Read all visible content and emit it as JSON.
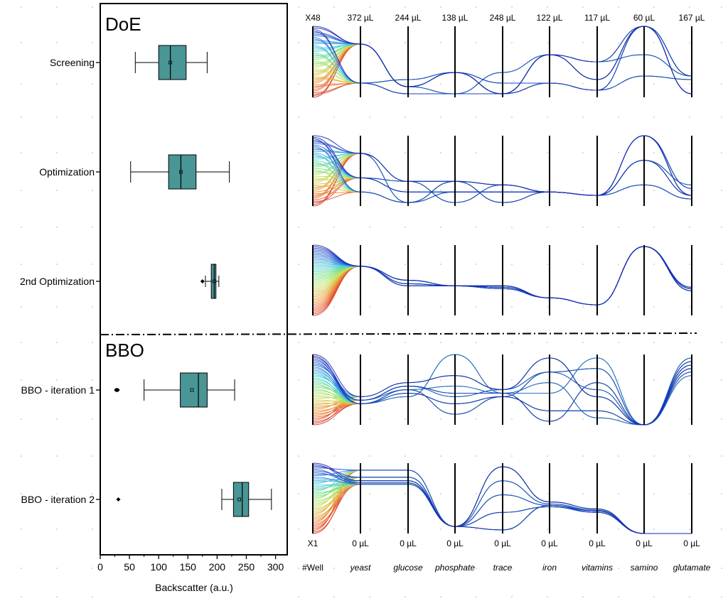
{
  "chart_data": [
    {
      "type": "boxplot",
      "orientation": "horizontal",
      "xlabel": "Backscatter (a.u.)",
      "xlim": [
        0,
        320
      ],
      "xticks": [
        0,
        50,
        100,
        150,
        200,
        250,
        300
      ],
      "section_labels": [
        "DoE",
        "BBO"
      ],
      "groups": [
        {
          "label": "Screening",
          "whisker_low": 60,
          "q1": 100,
          "median": 120,
          "mean": 120,
          "q3": 147,
          "whisker_high": 183,
          "outliers": []
        },
        {
          "label": "Optimization",
          "whisker_low": 52,
          "q1": 117,
          "median": 138,
          "mean": 138,
          "q3": 164,
          "whisker_high": 221,
          "outliers": []
        },
        {
          "label": "2nd Optimization",
          "whisker_low": 180,
          "q1": 190,
          "median": 195,
          "mean": 195,
          "q3": 198,
          "whisker_high": 203,
          "outliers": [
            175
          ]
        },
        {
          "label": "BBO - iteration 1",
          "whisker_low": 75,
          "q1": 137,
          "median": 168,
          "mean": 157,
          "q3": 183,
          "whisker_high": 230,
          "outliers": [
            27,
            28,
            30
          ]
        },
        {
          "label": "BBO - iteration 2",
          "whisker_low": 208,
          "q1": 228,
          "median": 243,
          "mean": 238,
          "q3": 254,
          "whisker_high": 293,
          "outliers": [
            31
          ]
        }
      ]
    },
    {
      "type": "parallel_coordinates",
      "axes": [
        "#Well",
        "yeast",
        "glucose",
        "phosphate",
        "trace",
        "iron",
        "vitamins",
        "samino",
        "glutamate"
      ],
      "top_labels": [
        "X48",
        "372 µL",
        "244 µL",
        "138 µL",
        "248 µL",
        "122 µL",
        "117 µL",
        "60 µL",
        "167 µL"
      ],
      "bottom_labels": [
        "X1",
        "0 µL",
        "0 µL",
        "0 µL",
        "0 µL",
        "0 µL",
        "0 µL",
        "0 µL",
        "0 µL"
      ],
      "color_scale": "well index (red = X1 … blue = X48)",
      "panels": [
        {
          "label": "Screening",
          "patterns": [
            [
              0.85,
              0.75,
              0.15,
              0.35,
              0.05,
              0.6,
              0.25,
              1.0,
              0.05
            ],
            [
              0.85,
              0.75,
              0.15,
              0.05,
              0.35,
              0.6,
              0.5,
              0.6,
              0.3
            ],
            [
              0.85,
              0.2,
              0.25,
              0.35,
              0.2,
              0.2,
              0.1,
              0.3,
              0.25
            ],
            [
              0.85,
              0.2,
              0.05,
              0.05,
              0.05,
              0.2,
              0.1,
              1.0,
              0.05
            ],
            [
              0.85,
              0.75,
              0.15,
              0.35,
              0.05,
              0.6,
              0.5,
              1.0,
              0.3
            ]
          ]
        },
        {
          "label": "Optimization",
          "patterns": [
            [
              0.85,
              0.75,
              0.35,
              0.35,
              0.3,
              0.2,
              0.15,
              1.0,
              0.15
            ],
            [
              0.85,
              0.75,
              0.05,
              0.2,
              0.2,
              0.2,
              0.15,
              0.65,
              0.3
            ],
            [
              0.85,
              0.4,
              0.35,
              0.05,
              0.3,
              0.2,
              0.15,
              0.3,
              0.1
            ],
            [
              0.85,
              0.2,
              0.05,
              0.35,
              0.05,
              0.2,
              0.15,
              1.0,
              0.25
            ],
            [
              0.85,
              0.4,
              0.2,
              0.2,
              0.2,
              0.2,
              0.15,
              0.65,
              0.15
            ]
          ]
        },
        {
          "label": "2nd Optimization",
          "patterns": [
            [
              0.85,
              0.7,
              0.5,
              0.42,
              0.42,
              0.25,
              0.15,
              0.98,
              0.35
            ],
            [
              0.85,
              0.7,
              0.42,
              0.42,
              0.38,
              0.25,
              0.15,
              0.98,
              0.4
            ],
            [
              0.85,
              0.7,
              0.45,
              0.42,
              0.4,
              0.25,
              0.15,
              0.98,
              0.38
            ]
          ]
        },
        {
          "label": "BBO - iteration 1",
          "patterns": [
            [
              0.85,
              0.3,
              0.5,
              0.15,
              0.4,
              0.75,
              0.8,
              0.0,
              0.75
            ],
            [
              0.85,
              0.35,
              0.55,
              0.45,
              0.45,
              0.05,
              0.6,
              0.0,
              0.85
            ],
            [
              0.85,
              0.3,
              0.45,
              0.3,
              0.4,
              0.2,
              0.2,
              0.0,
              0.9
            ],
            [
              0.85,
              0.4,
              0.6,
              0.7,
              0.5,
              0.95,
              0.4,
              0.0,
              0.8
            ],
            [
              0.85,
              0.35,
              0.5,
              0.55,
              0.45,
              0.45,
              0.95,
              0.0,
              0.7
            ],
            [
              0.85,
              0.3,
              0.4,
              1.0,
              0.45,
              0.6,
              0.1,
              0.0,
              0.85
            ],
            [
              0.85,
              0.35,
              0.55,
              0.4,
              0.5,
              0.75,
              0.5,
              0.0,
              0.95
            ]
          ]
        },
        {
          "label": "BBO - iteration 2",
          "patterns": [
            [
              0.85,
              0.75,
              0.75,
              0.1,
              0.95,
              0.45,
              0.35,
              0.0,
              0.0
            ],
            [
              0.85,
              0.7,
              0.7,
              0.1,
              0.75,
              0.42,
              0.33,
              0.0,
              0.0
            ],
            [
              0.85,
              0.9,
              0.9,
              0.1,
              0.55,
              0.4,
              0.3,
              0.0,
              0.0
            ],
            [
              0.85,
              0.8,
              0.8,
              0.1,
              0.3,
              0.38,
              0.3,
              0.0,
              0.0
            ],
            [
              0.85,
              0.72,
              0.72,
              0.1,
              0.05,
              0.4,
              0.32,
              0.0,
              0.0
            ]
          ]
        }
      ]
    }
  ],
  "colors": {
    "box_fill": "#4a9595",
    "axis": "#000000",
    "grid_dot": "#c0c0c0"
  }
}
